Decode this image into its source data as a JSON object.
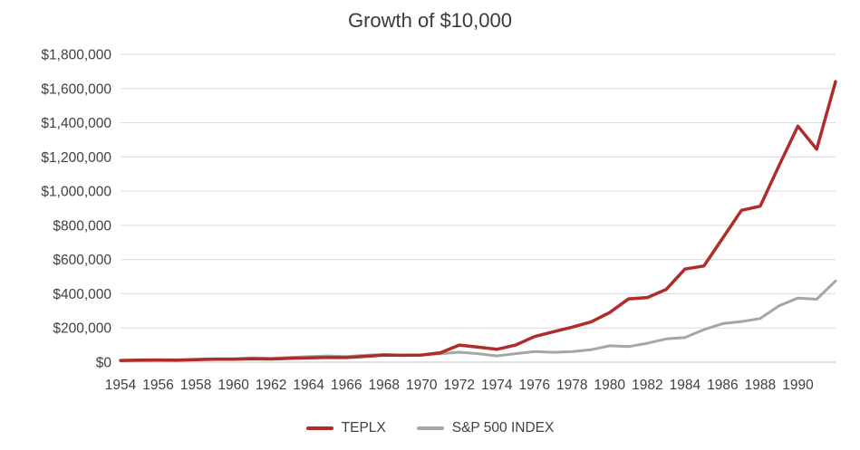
{
  "title": "Growth of $10,000",
  "chart_data": {
    "type": "line",
    "title": "Growth of $10,000",
    "x": [
      1954,
      1955,
      1956,
      1957,
      1958,
      1959,
      1960,
      1961,
      1962,
      1963,
      1964,
      1965,
      1966,
      1967,
      1968,
      1969,
      1970,
      1971,
      1972,
      1973,
      1974,
      1975,
      1976,
      1977,
      1978,
      1979,
      1980,
      1981,
      1982,
      1983,
      1984,
      1985,
      1986,
      1987,
      1988,
      1989,
      1990,
      1991,
      1992
    ],
    "series": [
      {
        "name": "TEPLX",
        "color": "#b02c28",
        "values": [
          10000,
          11500,
          12500,
          12000,
          15000,
          17000,
          17500,
          20000,
          18500,
          22000,
          25000,
          28000,
          27000,
          34000,
          42000,
          40000,
          42000,
          55000,
          100000,
          88000,
          75000,
          100000,
          150000,
          178000,
          205000,
          235000,
          290000,
          370000,
          378000,
          425000,
          545000,
          562000,
          725000,
          888000,
          912000,
          1150000,
          1380000,
          1245000,
          1640000
        ]
      },
      {
        "name": "S&P 500 INDEX",
        "color": "#a6a6a6",
        "values": [
          10000,
          13000,
          13800,
          12300,
          17500,
          19600,
          19600,
          24800,
          22600,
          27700,
          32300,
          36300,
          32600,
          40400,
          44900,
          41100,
          42700,
          48800,
          58100,
          49500,
          36400,
          50000,
          61900,
          57500,
          61200,
          72500,
          96000,
          91300,
          110900,
          135900,
          144400,
          190200,
          225700,
          237500,
          255000,
          330000,
          375000,
          368000,
          475000
        ]
      }
    ],
    "x_tick_values": [
      1954,
      1956,
      1958,
      1960,
      1962,
      1964,
      1966,
      1968,
      1970,
      1972,
      1974,
      1976,
      1978,
      1980,
      1982,
      1984,
      1986,
      1988,
      1990
    ],
    "x_tick_labels": [
      "1954",
      "1956",
      "1958",
      "1960",
      "1962",
      "1964",
      "1966",
      "1968",
      "1970",
      "1972",
      "1974",
      "1976",
      "1978",
      "1980",
      "1982",
      "1984",
      "1986",
      "1988",
      "1990"
    ],
    "y_tick_values": [
      0,
      200000,
      400000,
      600000,
      800000,
      1000000,
      1200000,
      1400000,
      1600000,
      1800000
    ],
    "y_tick_labels": [
      "$0",
      "$200,000",
      "$400,000",
      "$600,000",
      "$800,000",
      "$1,000,000",
      "$1,200,000",
      "$1,400,000",
      "$1,600,000",
      "$1,800,000"
    ],
    "ylim": [
      0,
      1800000
    ],
    "x_range": [
      1954,
      1992
    ],
    "grid": true,
    "gridline_color": "#d9d9d9",
    "axis_line_color": "#c6c6c6",
    "axis_text_color": "#404040",
    "legend_position": "bottom"
  }
}
